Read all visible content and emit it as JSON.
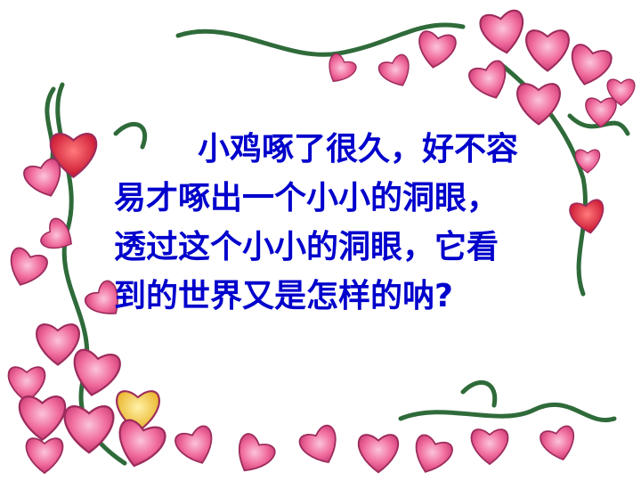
{
  "slide": {
    "lines": [
      "小鸡啄了很久，好不容",
      "易才啄出一个小小的洞眼，",
      "透过这个小小的洞眼，它看",
      "到的世界又是怎样的呐?"
    ]
  },
  "colors": {
    "text": "#0000cc",
    "petal_pink": "#f06a9c",
    "petal_light": "#f8a8c8",
    "petal_red": "#e0203a",
    "petal_yellow": "#f5c842",
    "vine": "#2f6b3a"
  },
  "decoration": "flower-vine-frame"
}
